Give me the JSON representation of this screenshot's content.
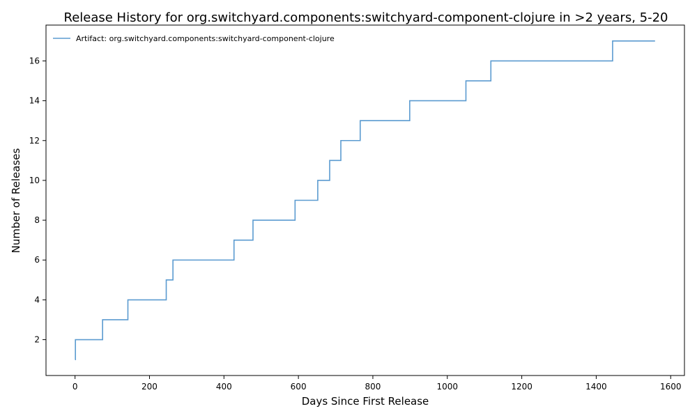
{
  "chart_data": {
    "type": "line",
    "drawstyle": "steps-post",
    "title": "Release History for org.switchyard.components:switchyard-component-clojure in >2 years, 5-20",
    "xlabel": "Days Since First Release",
    "ylabel": "Number of Releases",
    "xlim": [
      -78,
      1637
    ],
    "ylim": [
      0.2,
      17.8
    ],
    "xticks": [
      0,
      200,
      400,
      600,
      800,
      1000,
      1200,
      1400,
      1600
    ],
    "yticks": [
      2,
      4,
      6,
      8,
      10,
      12,
      14,
      16
    ],
    "grid": false,
    "legend_position": "top-left",
    "series": [
      {
        "name": "Artifact: org.switchyard.components:switchyard-component-clojure",
        "color": "#5b9bd0",
        "x": [
          0,
          1,
          74,
          142,
          245,
          263,
          427,
          478,
          591,
          652,
          684,
          714,
          766,
          899,
          1050,
          1117,
          1444,
          1558
        ],
        "y": [
          1,
          2,
          3,
          4,
          5,
          6,
          7,
          8,
          9,
          10,
          11,
          12,
          13,
          14,
          15,
          16,
          17,
          17
        ]
      }
    ]
  }
}
